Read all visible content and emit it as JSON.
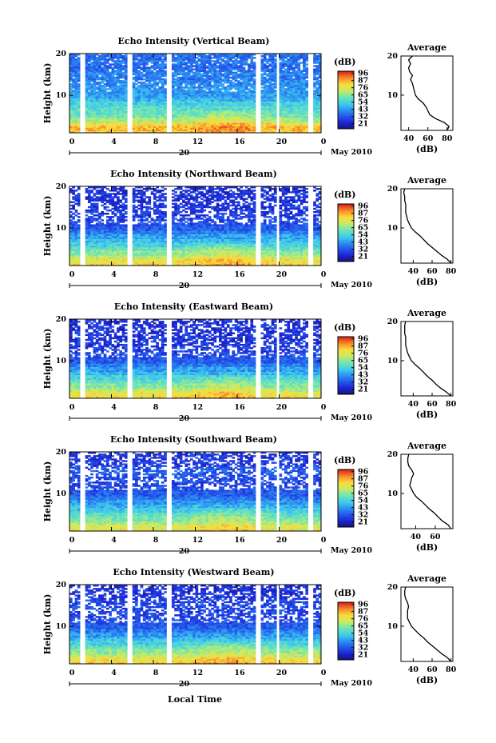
{
  "figure": {
    "date_label": "May 2010",
    "day_label": "20",
    "x_axis_label": "Local Time",
    "cb_unit": "(dB)",
    "avg_title": "Average",
    "avg_xlabel": "(dB)",
    "y_axis_label": "Height (km)"
  },
  "chart_data": [
    {
      "type": "heatmap",
      "title": "Echo Intensity (Vertical Beam)",
      "ylabel": "Height (km)",
      "x_ticks": [
        "0",
        "4",
        "8",
        "12",
        "16",
        "20",
        "0"
      ],
      "xlim": [
        0,
        24
      ],
      "y_ticks": [
        "20",
        "10"
      ],
      "ylim": [
        1,
        20
      ],
      "colorbar_label": "(dB)",
      "colorbar_ticks": [
        "96",
        "87",
        "76",
        "65",
        "54",
        "43",
        "32",
        "21"
      ],
      "data_gaps_hours": [
        [
          1.0,
          1.5
        ],
        [
          5.5,
          6.0
        ],
        [
          9.3,
          9.7
        ],
        [
          17.8,
          18.3
        ],
        [
          19.7,
          20.1
        ],
        [
          22.8,
          23.2
        ]
      ],
      "average_profile": {
        "title": "Average",
        "xlabel": "(dB)",
        "xticks": [
          "40",
          "60",
          "80"
        ],
        "xlim": [
          32,
          86
        ],
        "heights": [
          1,
          2,
          3,
          4,
          5,
          6,
          7,
          8,
          9,
          10,
          11,
          12,
          13,
          14,
          15,
          16,
          17,
          18,
          19,
          20
        ],
        "values": [
          80,
          82,
          77,
          68,
          62,
          60,
          58,
          55,
          50,
          47,
          46,
          45,
          44,
          42,
          44,
          41,
          40,
          42,
          40,
          44
        ]
      }
    },
    {
      "type": "heatmap",
      "title": "Echo Intensity (Northward Beam)",
      "ylabel": "Height (km)",
      "x_ticks": [
        "0",
        "4",
        "8",
        "12",
        "16",
        "20",
        "0"
      ],
      "xlim": [
        0,
        24
      ],
      "y_ticks": [
        "20",
        "10"
      ],
      "ylim": [
        1,
        20
      ],
      "colorbar_label": "(dB)",
      "colorbar_ticks": [
        "96",
        "87",
        "76",
        "65",
        "54",
        "43",
        "32",
        "21"
      ],
      "data_gaps_hours": [
        [
          1.0,
          1.5
        ],
        [
          5.5,
          6.0
        ],
        [
          9.3,
          9.7
        ],
        [
          17.8,
          18.3
        ],
        [
          19.7,
          20.1
        ],
        [
          22.8,
          23.2
        ]
      ],
      "average_profile": {
        "title": "Average",
        "xlabel": "(dB)",
        "xticks": [
          "40",
          "60",
          "80"
        ],
        "xlim": [
          27,
          82
        ],
        "heights": [
          1,
          2,
          3,
          4,
          5,
          6,
          7,
          8,
          9,
          10,
          11,
          12,
          13,
          14,
          15,
          16,
          17,
          18,
          19,
          20
        ],
        "values": [
          80,
          76,
          70,
          65,
          60,
          55,
          51,
          47,
          42,
          38,
          36,
          34,
          33,
          32,
          32,
          32,
          31,
          31,
          30,
          31
        ]
      }
    },
    {
      "type": "heatmap",
      "title": "Echo Intensity (Eastward Beam)",
      "ylabel": "Height (km)",
      "x_ticks": [
        "0",
        "4",
        "8",
        "12",
        "16",
        "20",
        "0"
      ],
      "xlim": [
        0,
        24
      ],
      "y_ticks": [
        "20",
        "10"
      ],
      "ylim": [
        1,
        20
      ],
      "colorbar_label": "(dB)",
      "colorbar_ticks": [
        "96",
        "87",
        "76",
        "65",
        "54",
        "43",
        "32",
        "21"
      ],
      "data_gaps_hours": [
        [
          1.0,
          1.5
        ],
        [
          5.5,
          6.0
        ],
        [
          9.3,
          9.7
        ],
        [
          17.8,
          18.3
        ],
        [
          19.7,
          20.1
        ],
        [
          22.8,
          23.2
        ]
      ],
      "average_profile": {
        "title": "Average",
        "xlabel": "(dB)",
        "xticks": [
          "40",
          "60",
          "80"
        ],
        "xlim": [
          27,
          82
        ],
        "heights": [
          1,
          2,
          3,
          4,
          5,
          6,
          7,
          8,
          9,
          10,
          11,
          12,
          13,
          14,
          15,
          16,
          17,
          18,
          19,
          20
        ],
        "values": [
          80,
          75,
          69,
          64,
          60,
          55,
          51,
          47,
          42,
          38,
          36,
          34,
          33,
          32,
          32,
          32,
          31,
          31,
          31,
          32
        ]
      }
    },
    {
      "type": "heatmap",
      "title": "Echo Intensity (Southward Beam)",
      "ylabel": "Height (km)",
      "x_ticks": [
        "0",
        "4",
        "8",
        "12",
        "16",
        "20",
        "0"
      ],
      "xlim": [
        0,
        24
      ],
      "y_ticks": [
        "20",
        "10"
      ],
      "ylim": [
        1,
        20
      ],
      "colorbar_label": "(dB)",
      "colorbar_ticks": [
        "96",
        "87",
        "76",
        "65",
        "54",
        "43",
        "32",
        "21"
      ],
      "data_gaps_hours": [
        [
          1.0,
          1.5
        ],
        [
          5.5,
          6.0
        ],
        [
          9.3,
          9.7
        ],
        [
          17.8,
          18.3
        ],
        [
          19.7,
          20.1
        ],
        [
          22.8,
          23.2
        ]
      ],
      "average_profile": {
        "title": "Average",
        "xlabel": "(dB)",
        "xticks": [
          "40",
          "60"
        ],
        "xlim": [
          25,
          78
        ],
        "heights": [
          1,
          2,
          3,
          4,
          5,
          6,
          7,
          8,
          9,
          10,
          11,
          12,
          13,
          14,
          15,
          16,
          17,
          18,
          19,
          20
        ],
        "values": [
          76,
          73,
          67,
          63,
          59,
          54,
          50,
          46,
          41,
          38,
          36,
          34,
          35,
          36,
          38,
          36,
          33,
          32,
          32,
          33
        ]
      }
    },
    {
      "type": "heatmap",
      "title": "Echo Intensity (Westward Beam)",
      "ylabel": "Height (km)",
      "x_ticks": [
        "0",
        "4",
        "8",
        "12",
        "16",
        "20",
        "0"
      ],
      "xlim": [
        0,
        24
      ],
      "y_ticks": [
        "20",
        "10"
      ],
      "ylim": [
        1,
        20
      ],
      "colorbar_label": "(dB)",
      "colorbar_ticks": [
        "96",
        "87",
        "76",
        "65",
        "54",
        "43",
        "32",
        "21"
      ],
      "data_gaps_hours": [
        [
          1.0,
          1.5
        ],
        [
          5.5,
          6.0
        ],
        [
          9.3,
          9.7
        ],
        [
          17.8,
          18.3
        ],
        [
          19.7,
          20.1
        ],
        [
          22.8,
          23.2
        ]
      ],
      "average_profile": {
        "title": "Average",
        "xlabel": "(dB)",
        "xticks": [
          "40",
          "60",
          "80"
        ],
        "xlim": [
          27,
          82
        ],
        "heights": [
          1,
          2,
          3,
          4,
          5,
          6,
          7,
          8,
          9,
          10,
          11,
          12,
          13,
          14,
          15,
          16,
          17,
          18,
          19,
          20
        ],
        "values": [
          80,
          76,
          70,
          65,
          60,
          55,
          51,
          46,
          42,
          38,
          36,
          34,
          34,
          34,
          35,
          34,
          32,
          31,
          31,
          32
        ]
      }
    }
  ]
}
